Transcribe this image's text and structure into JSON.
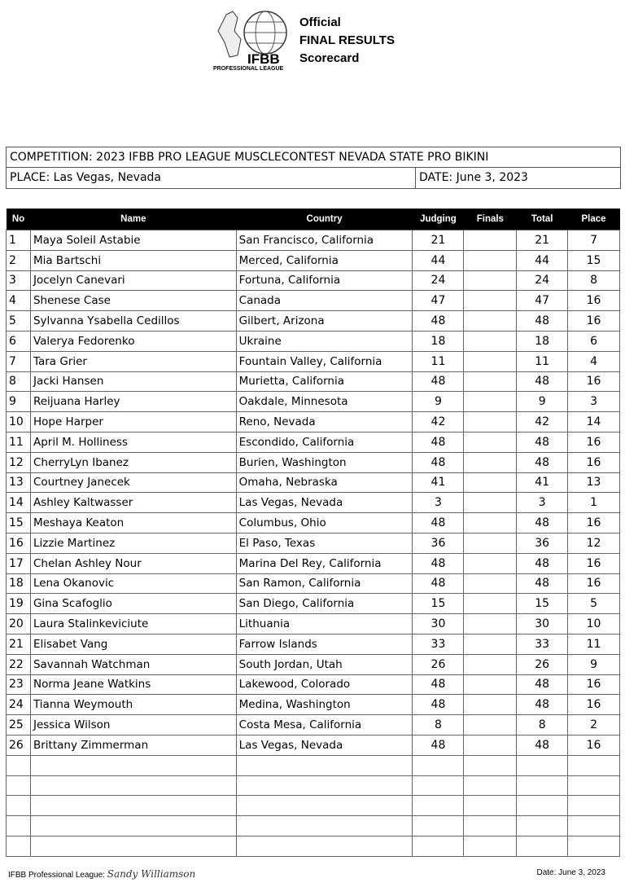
{
  "header": {
    "logo_text": "IFBB",
    "logo_subtext": "PROFESSIONAL LEAGUE",
    "line1": "Official",
    "line2": "FINAL RESULTS",
    "line3": "Scorecard"
  },
  "info": {
    "competition": "COMPETITION:  2023 IFBB PRO LEAGUE MUSCLECONTEST NEVADA STATE PRO BIKINI",
    "place": "PLACE: Las Vegas, Nevada",
    "date": "DATE: June 3, 2023"
  },
  "columns": [
    "No",
    "Name",
    "Country",
    "Judging",
    "Finals",
    "Total",
    "Place"
  ],
  "rows": [
    [
      "1",
      "Maya Soleil Astabie",
      "San Francisco, California",
      "21",
      "",
      "21",
      "7"
    ],
    [
      "2",
      "Mia Bartschi",
      "Merced, California",
      "44",
      "",
      "44",
      "15"
    ],
    [
      "3",
      "Jocelyn Canevari",
      "Fortuna, California",
      "24",
      "",
      "24",
      "8"
    ],
    [
      "4",
      "Shenese Case",
      "Canada",
      "47",
      "",
      "47",
      "16"
    ],
    [
      "5",
      "Sylvanna Ysabella Cedillos",
      "Gilbert, Arizona",
      "48",
      "",
      "48",
      "16"
    ],
    [
      "6",
      "Valerya Fedorenko",
      "Ukraine",
      "18",
      "",
      "18",
      "6"
    ],
    [
      "7",
      "Tara Grier",
      "Fountain Valley, California",
      "11",
      "",
      "11",
      "4"
    ],
    [
      "8",
      "Jacki Hansen",
      "Murietta, California",
      "48",
      "",
      "48",
      "16"
    ],
    [
      "9",
      "Reijuana Harley",
      "Oakdale, Minnesota",
      "9",
      "",
      "9",
      "3"
    ],
    [
      "10",
      "Hope Harper",
      "Reno, Nevada",
      "42",
      "",
      "42",
      "14"
    ],
    [
      "11",
      "April M. Holliness",
      "Escondido, California",
      "48",
      "",
      "48",
      "16"
    ],
    [
      "12",
      "CherryLyn Ibanez",
      "Burien, Washington",
      "48",
      "",
      "48",
      "16"
    ],
    [
      "13",
      "Courtney Janecek",
      "Omaha, Nebraska",
      "41",
      "",
      "41",
      "13"
    ],
    [
      "14",
      "Ashley Kaltwasser",
      "Las Vegas, Nevada",
      "3",
      "",
      "3",
      "1"
    ],
    [
      "15",
      "Meshaya Keaton",
      "Columbus, Ohio",
      "48",
      "",
      "48",
      "16"
    ],
    [
      "16",
      "Lizzie Martinez",
      "El Paso, Texas",
      "36",
      "",
      "36",
      "12"
    ],
    [
      "17",
      "Chelan Ashley Nour",
      "Marina Del Rey, California",
      "48",
      "",
      "48",
      "16"
    ],
    [
      "18",
      "Lena Okanovic",
      "San Ramon, California",
      "48",
      "",
      "48",
      "16"
    ],
    [
      "19",
      "Gina Scafoglio",
      "San Diego, California",
      "15",
      "",
      "15",
      "5"
    ],
    [
      "20",
      "Laura Stalinkeviciute",
      "Lithuania",
      "30",
      "",
      "30",
      "10"
    ],
    [
      "21",
      "Elisabet Vang",
      "Farrow Islands",
      "33",
      "",
      "33",
      "11"
    ],
    [
      "22",
      "Savannah Watchman",
      "South Jordan, Utah",
      "26",
      "",
      "26",
      "9"
    ],
    [
      "23",
      "Norma Jeane Watkins",
      "Lakewood, Colorado",
      "48",
      "",
      "48",
      "16"
    ],
    [
      "24",
      "Tianna Weymouth",
      "Medina, Washington",
      "48",
      "",
      "48",
      "16"
    ],
    [
      "25",
      "Jessica Wilson",
      "Costa Mesa, California",
      "8",
      "",
      "8",
      "2"
    ],
    [
      "26",
      "Brittany Zimmerman",
      "Las Vegas, Nevada",
      "48",
      "",
      "48",
      "16"
    ]
  ],
  "footer": {
    "league_label": "IFBB Professional League:",
    "signature": "Sandy Williamson",
    "date": "Date: June 3, 2023"
  }
}
